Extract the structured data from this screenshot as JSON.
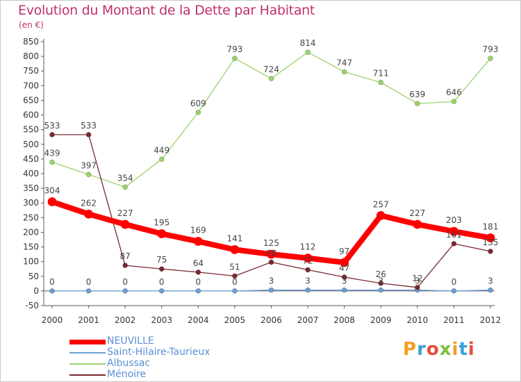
{
  "header": {
    "title": "Evolution du Montant de la Dette par Habitant",
    "subtitle": "(en €)"
  },
  "logo": {
    "text": "Proxiti",
    "colors": [
      "#f0a020",
      "#3aa0d8",
      "#e84c3c",
      "#7bbf3a",
      "#f0a020",
      "#3aa0d8",
      "#e84c3c"
    ]
  },
  "chart_data": {
    "type": "line",
    "title": "Evolution du Montant de la Dette par Habitant",
    "subtitle": "(en €)",
    "xlabel": "",
    "ylabel": "",
    "x": [
      "2000",
      "2001",
      "2002",
      "2003",
      "2004",
      "2005",
      "2006",
      "2007",
      "2008",
      "2009",
      "2010",
      "2011",
      "2012"
    ],
    "ylim": [
      -50,
      850
    ],
    "yticks": [
      -50,
      0,
      50,
      100,
      150,
      200,
      250,
      300,
      350,
      400,
      450,
      500,
      550,
      600,
      650,
      700,
      750,
      800,
      850
    ],
    "grid": false,
    "legend_position": "bottom-left",
    "series": [
      {
        "name": "NEUVILLE",
        "color": "#ff0000",
        "values": [
          304,
          262,
          227,
          195,
          169,
          141,
          125,
          112,
          97,
          257,
          227,
          203,
          181
        ],
        "labels": [
          "304",
          "262",
          "227",
          "195",
          "169",
          "141",
          "125",
          "112",
          "97",
          "257",
          "227",
          "203",
          "181"
        ]
      },
      {
        "name": "Saint-Hilaire-Taurieux",
        "color": "#6b9fd0",
        "values": [
          0,
          0,
          0,
          0,
          0,
          0,
          3,
          3,
          3,
          3,
          3,
          0,
          3
        ],
        "labels": [
          "0",
          "0",
          "0",
          "0",
          "0",
          "0",
          "3",
          "3",
          "3",
          "3",
          "3",
          "0",
          "3"
        ]
      },
      {
        "name": "Albussac",
        "color": "#9bd36a",
        "values": [
          439,
          397,
          354,
          449,
          609,
          793,
          724,
          814,
          747,
          711,
          639,
          646,
          793
        ],
        "labels": [
          "439",
          "397",
          "354",
          "449",
          "609",
          "793",
          "724",
          "814",
          "747",
          "711",
          "639",
          "646",
          "793"
        ]
      },
      {
        "name": "Ménoire",
        "color": "#7a2830",
        "values": [
          533,
          533,
          87,
          75,
          64,
          51,
          98,
          72,
          47,
          26,
          12,
          161,
          135
        ],
        "labels": [
          "533",
          "533",
          "87",
          "75",
          "64",
          "51",
          "98",
          "72",
          "47",
          "26",
          "12",
          "161",
          "135"
        ]
      }
    ]
  }
}
